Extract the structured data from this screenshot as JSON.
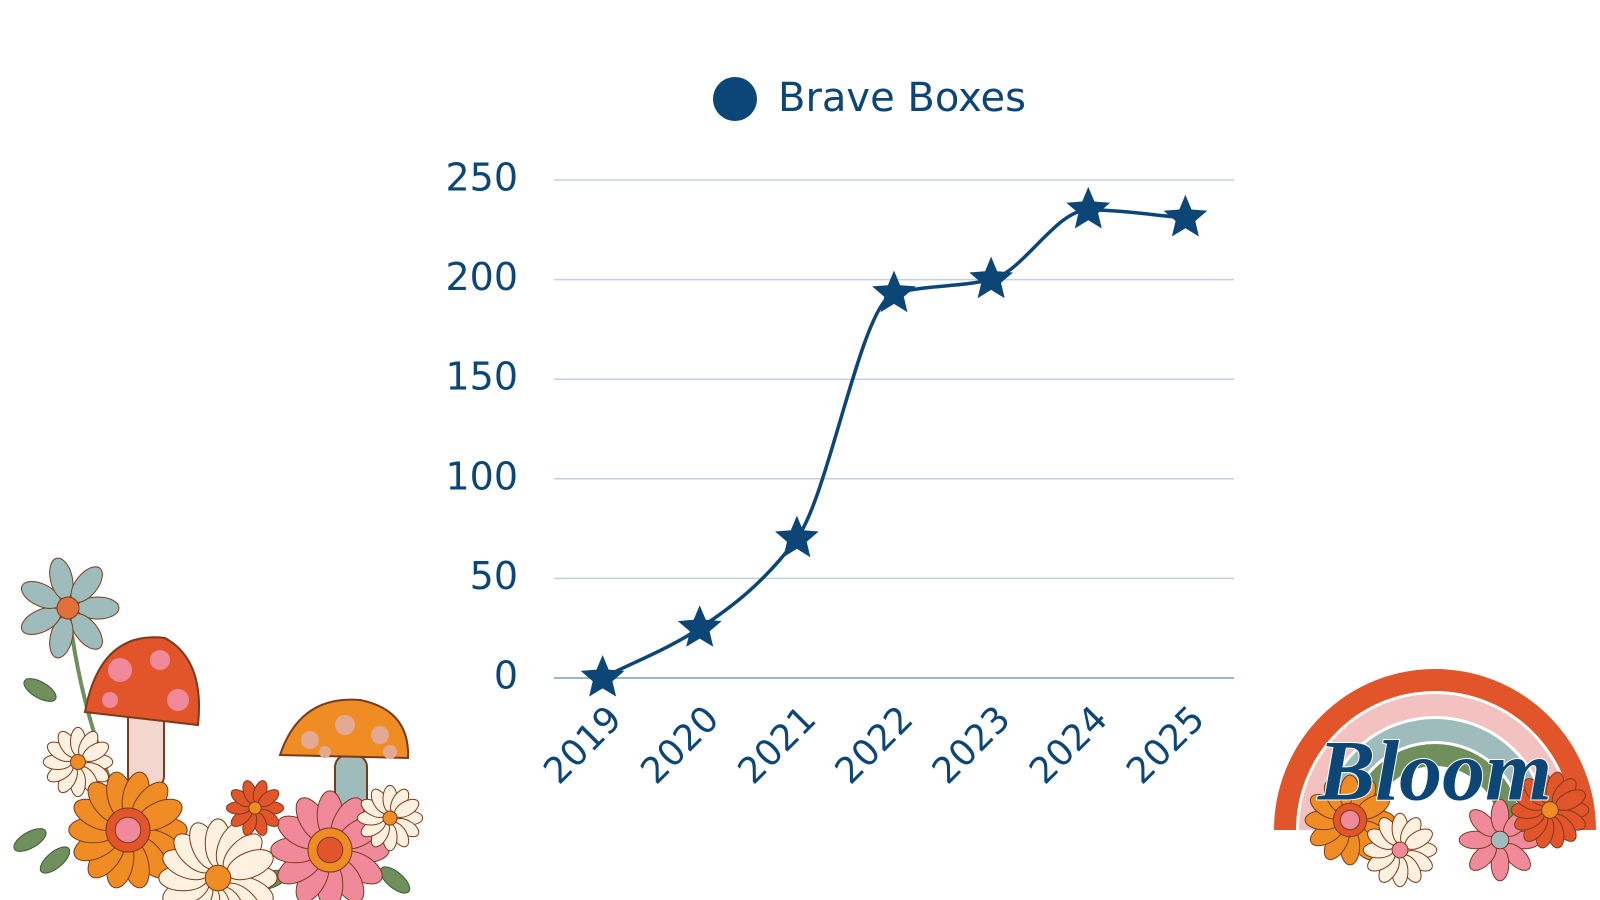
{
  "chart_data": {
    "type": "line",
    "categories": [
      "2019",
      "2020",
      "2021",
      "2022",
      "2023",
      "2024",
      "2025"
    ],
    "series": [
      {
        "name": "Brave Boxes",
        "color": "#0c4677",
        "values": [
          0,
          25,
          70,
          193,
          200,
          235,
          231
        ]
      }
    ],
    "ylim": [
      0,
      250
    ],
    "yticks": [
      0,
      50,
      100,
      150,
      200,
      250
    ],
    "grid": true,
    "legend": "top",
    "marker": "star",
    "smooth": true
  },
  "logo": "Bloom"
}
